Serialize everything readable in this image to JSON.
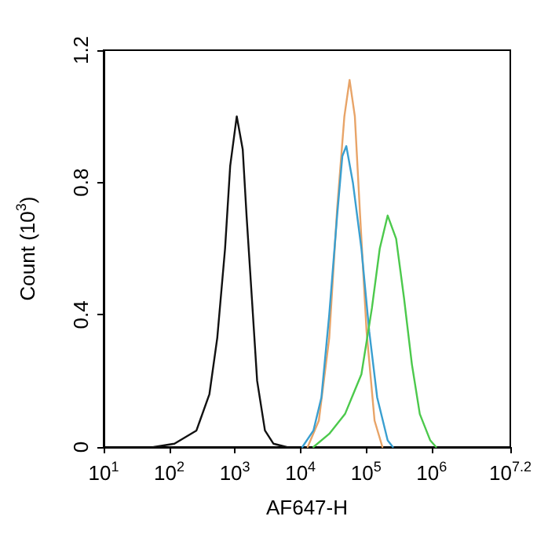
{
  "chart_data": {
    "type": "line",
    "xlabel": "AF647-H",
    "ylabel": "Count (10$^{3}$)",
    "log": "x",
    "xlim": [
      10,
      15848932
    ],
    "xticks": [
      {
        "value": 10,
        "label": "10$^{1}$"
      },
      {
        "value": 100,
        "label": "10$^{2}$"
      },
      {
        "value": 1000,
        "label": "10$^{3}$"
      },
      {
        "value": 10000,
        "label": "10$^{4}$"
      },
      {
        "value": 100000,
        "label": "10$^{5}$"
      },
      {
        "value": 1000000,
        "label": "10$^{6}$"
      },
      {
        "value": 15848932,
        "label": "10$^{7.2}$"
      }
    ],
    "ylim": [
      0,
      1.2
    ],
    "yticks": [
      0,
      0.4,
      0.8,
      1.2
    ],
    "grid": false,
    "legend": false,
    "marker": "none",
    "line_style": "solid",
    "series": [
      {
        "color": "#111111",
        "x": [
          58,
          120,
          260,
          410,
          540,
          710,
          850,
          1070,
          1320,
          1510,
          1820,
          2190,
          2880,
          3890,
          6170
        ],
        "values": [
          0,
          0.01,
          0.05,
          0.16,
          0.33,
          0.6,
          0.85,
          1.0,
          0.9,
          0.7,
          0.45,
          0.2,
          0.05,
          0.01,
          0
        ]
      },
      {
        "color": "#e8a468",
        "x": [
          12900,
          19100,
          27500,
          36300,
          46800,
          56200,
          67600,
          81300,
          102000,
          135000,
          178000
        ],
        "values": [
          0,
          0.08,
          0.33,
          0.72,
          1.0,
          1.11,
          1.0,
          0.7,
          0.35,
          0.08,
          0
        ]
      },
      {
        "color": "#3a9fd0",
        "x": [
          10700,
          15800,
          20900,
          27500,
          36300,
          43600,
          50100,
          63100,
          85100,
          112000,
          148000,
          214000,
          257000
        ],
        "values": [
          0,
          0.05,
          0.15,
          0.4,
          0.7,
          0.88,
          0.91,
          0.8,
          0.6,
          0.35,
          0.15,
          0.02,
          0
        ]
      },
      {
        "color": "#4cc94c",
        "x": [
          15800,
          27500,
          47900,
          85100,
          123000,
          162000,
          214000,
          288000,
          380000,
          501000,
          661000,
          955000,
          1170000
        ],
        "values": [
          0,
          0.04,
          0.1,
          0.22,
          0.42,
          0.6,
          0.7,
          0.63,
          0.45,
          0.25,
          0.1,
          0.02,
          0
        ]
      }
    ]
  }
}
